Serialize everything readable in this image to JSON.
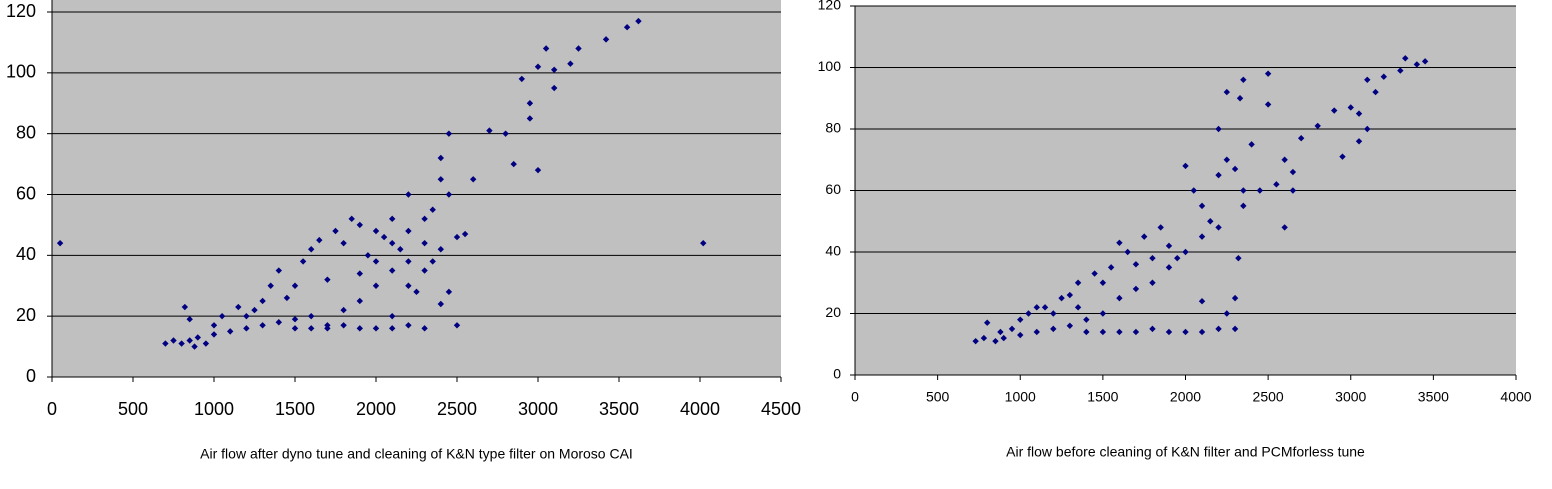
{
  "chart_data": [
    {
      "type": "scatter",
      "xlabel": "Air flow after dyno tune and cleaning of K&N type filter on Moroso CAI",
      "color": "#000080",
      "grid": true,
      "xlim": [
        0,
        4500
      ],
      "xticks": [
        0,
        500,
        1000,
        1500,
        2000,
        2500,
        3000,
        3500,
        4000,
        4500
      ],
      "ylim": [
        0,
        120
      ],
      "yticks": [
        0,
        20,
        40,
        60,
        80,
        100,
        120
      ],
      "x": [
        50,
        700,
        750,
        800,
        820,
        850,
        880,
        900,
        950,
        1000,
        1050,
        1100,
        1150,
        1200,
        1250,
        1300,
        1350,
        1400,
        1450,
        1500,
        1550,
        1600,
        1650,
        1700,
        1750,
        1800,
        1850,
        1900,
        1950,
        2000,
        2050,
        2100,
        2150,
        2200,
        2250,
        2300,
        2350,
        2400,
        2450,
        2500,
        1300,
        1400,
        1500,
        1600,
        1700,
        1800,
        1900,
        2000,
        2100,
        2200,
        2300,
        2400,
        1500,
        1600,
        1700,
        1800,
        1900,
        2000,
        2100,
        2200,
        2300,
        2400,
        2450,
        2500,
        2600,
        2700,
        2800,
        2850,
        2900,
        2950,
        3000,
        3050,
        3100,
        3200,
        3250,
        3420,
        3550,
        3620,
        4020,
        1900,
        2100,
        2200,
        2350,
        2450,
        2550,
        850,
        1000,
        1200,
        2000,
        2100,
        2200,
        2300,
        2400,
        3000,
        2950,
        3100
      ],
      "y": [
        44,
        11,
        12,
        11,
        23,
        12,
        10,
        13,
        11,
        14,
        20,
        15,
        23,
        16,
        22,
        17,
        30,
        18,
        26,
        19,
        38,
        20,
        45,
        17,
        48,
        22,
        52,
        25,
        40,
        30,
        46,
        35,
        42,
        38,
        28,
        44,
        55,
        65,
        60,
        17,
        25,
        35,
        30,
        42,
        32,
        44,
        50,
        48,
        52,
        60,
        35,
        72,
        16,
        16,
        16,
        17,
        16,
        16,
        16,
        17,
        16,
        24,
        80,
        46,
        65,
        81,
        80,
        70,
        98,
        85,
        102,
        108,
        101,
        103,
        108,
        111,
        115,
        117,
        44,
        34,
        20,
        48,
        38,
        28,
        47,
        19,
        17,
        20,
        38,
        44,
        30,
        52,
        42,
        68,
        90,
        95
      ]
    },
    {
      "type": "scatter",
      "xlabel": "Air flow before cleaning of K&N filter and PCMforless tune",
      "color": "#000080",
      "grid": true,
      "xlim": [
        0,
        4000
      ],
      "xticks": [
        0,
        500,
        1000,
        1500,
        2000,
        2500,
        3000,
        3500,
        4000
      ],
      "ylim": [
        0,
        120
      ],
      "yticks": [
        0,
        20,
        40,
        60,
        80,
        100,
        120
      ],
      "x": [
        730,
        780,
        800,
        850,
        880,
        900,
        950,
        1000,
        1050,
        1100,
        1150,
        1200,
        1250,
        1300,
        1350,
        1400,
        1450,
        1500,
        1550,
        1600,
        1650,
        1700,
        1750,
        1800,
        1850,
        1900,
        1950,
        2000,
        2050,
        2100,
        2150,
        2200,
        2250,
        2300,
        2330,
        2350,
        2400,
        2450,
        2500,
        2550,
        2600,
        2650,
        2700,
        2800,
        2900,
        2950,
        3000,
        3050,
        3100,
        3150,
        3200,
        3300,
        3330,
        3400,
        3450,
        1400,
        1500,
        1600,
        1700,
        1800,
        1900,
        2000,
        2100,
        2200,
        2300,
        2300,
        2320,
        2200,
        2250,
        1100,
        1300,
        1500,
        1700,
        1900,
        2000,
        2100,
        2200,
        2350,
        2500,
        2600,
        2650,
        3050,
        3100,
        1200,
        1600,
        1800,
        2100,
        2250,
        2350,
        1000,
        1350
      ],
      "y": [
        11,
        12,
        17,
        11,
        14,
        12,
        15,
        13,
        20,
        14,
        22,
        15,
        25,
        16,
        30,
        14,
        33,
        20,
        35,
        25,
        40,
        28,
        45,
        30,
        48,
        35,
        38,
        40,
        60,
        45,
        50,
        48,
        70,
        67,
        90,
        96,
        75,
        60,
        98,
        62,
        70,
        60,
        77,
        81,
        86,
        71,
        87,
        85,
        80,
        92,
        97,
        99,
        103,
        101,
        102,
        18,
        14,
        14,
        14,
        15,
        14,
        14,
        14,
        15,
        15,
        25,
        38,
        80,
        92,
        22,
        26,
        30,
        36,
        42,
        68,
        55,
        65,
        60,
        88,
        48,
        66,
        76,
        96,
        20,
        43,
        38,
        24,
        20,
        55,
        18,
        22
      ]
    }
  ]
}
